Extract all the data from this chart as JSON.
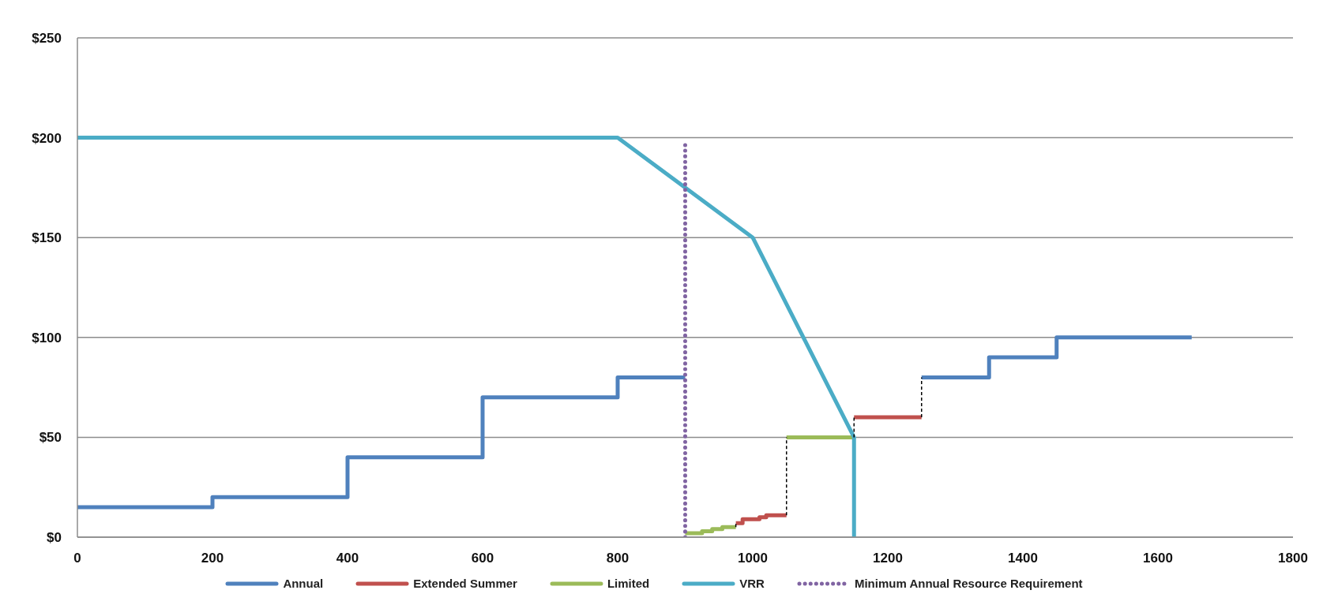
{
  "chart_data": {
    "type": "line",
    "xlim": [
      0,
      1800
    ],
    "xticks": [
      0,
      200,
      400,
      600,
      800,
      1000,
      1200,
      1400,
      1600,
      1800
    ],
    "ylim": [
      0,
      250
    ],
    "yticks": [
      {
        "value": 0,
        "label": "$0"
      },
      {
        "value": 50,
        "label": "$50"
      },
      {
        "value": 100,
        "label": "$100"
      },
      {
        "value": 150,
        "label": "$150"
      },
      {
        "value": 200,
        "label": "$200"
      },
      {
        "value": 250,
        "label": "$250"
      }
    ],
    "grid": "y",
    "legend": "bottom",
    "marker": "none",
    "series": [
      {
        "name": "Annual",
        "color": "#4f81bd",
        "line_style": "solid",
        "x": [
          0,
          200,
          200,
          400,
          400,
          600,
          600,
          800,
          800,
          900,
          1000,
          1250,
          1350,
          1350,
          1450,
          1450,
          1650
        ],
        "values": [
          15,
          15,
          20,
          20,
          40,
          40,
          70,
          70,
          80,
          80,
          null,
          80,
          80,
          90,
          90,
          100,
          100
        ]
      },
      {
        "name": "Extended Summer",
        "color": "#c0504d",
        "line_style": "solid",
        "x": [
          975,
          985,
          985,
          1010,
          1010,
          1020,
          1020,
          1050,
          1100,
          1150,
          1250
        ],
        "values": [
          7,
          7,
          9,
          9,
          10,
          10,
          11,
          11,
          null,
          60,
          60
        ]
      },
      {
        "name": "Limited",
        "color": "#9bbb59",
        "line_style": "solid",
        "x": [
          900,
          925,
          925,
          940,
          940,
          955,
          955,
          975,
          1000,
          1050,
          1150
        ],
        "values": [
          2,
          2,
          3,
          3,
          4,
          4,
          5,
          5,
          null,
          50,
          50
        ]
      },
      {
        "name": "VRR",
        "color": "#4bacc6",
        "line_style": "solid",
        "x": [
          0,
          800,
          1000,
          1150,
          1150
        ],
        "values": [
          200,
          200,
          150,
          50,
          0
        ]
      },
      {
        "name": "Minimum Annual Resource Requirement",
        "color": "#8064a2",
        "line_style": "dotted",
        "x": [
          900,
          900
        ],
        "values": [
          0,
          197
        ]
      },
      {
        "color": "#000000",
        "line_style": "dashed",
        "x": [
          975,
          975,
          1000,
          1050,
          1050,
          1100,
          1150,
          1150,
          1200,
          1250,
          1250
        ],
        "values": [
          5,
          7,
          null,
          11,
          50,
          null,
          50,
          60,
          null,
          60,
          80
        ]
      }
    ]
  }
}
